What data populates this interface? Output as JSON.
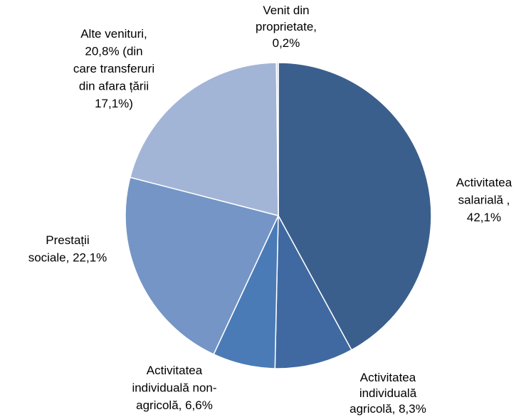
{
  "chart_data": {
    "type": "pie",
    "categories": [
      "Activitatea\nsalarială ,\n42,1%",
      "Activitatea\nindividuală\nagricolă, 8,3%",
      "Activitatea\nindividuală non-\nagricolă, 6,6%",
      "Prestații\nsociale, 22,1%",
      "Alte venituri,\n20,8% (din\ncare transferuri\ndin afara țării\n17,1%)",
      "Venit din\nproprietate,\n0,2%"
    ],
    "values": [
      42.1,
      8.3,
      6.6,
      22.1,
      20.8,
      0.2
    ],
    "colors": [
      "#3b5f8d",
      "#3f69a0",
      "#4a7bb7",
      "#7495c6",
      "#a3b5d6",
      "#c9d3e7"
    ]
  }
}
